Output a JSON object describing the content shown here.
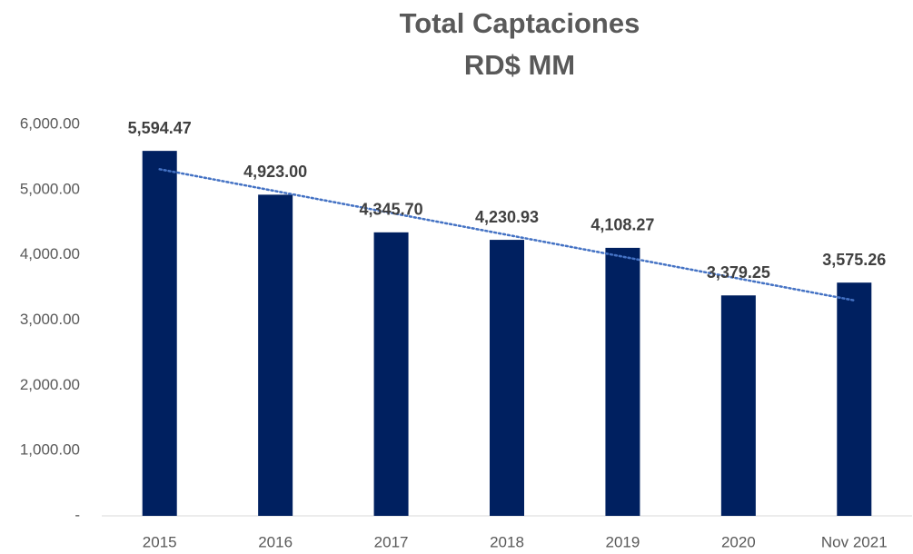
{
  "chart_data": {
    "type": "bar",
    "title": "Total Captaciones",
    "subtitle": "RD$ MM",
    "categories": [
      "2015",
      "2016",
      "2017",
      "2018",
      "2019",
      "2020",
      "Nov 2021"
    ],
    "values": [
      5594.47,
      4923.0,
      4345.7,
      4230.93,
      4108.27,
      3379.25,
      3575.26
    ],
    "value_labels": [
      "5,594.47",
      "4,923.00",
      "4,345.70",
      "4,230.93",
      "4,108.27",
      "3,379.25",
      "3,575.26"
    ],
    "color": "#002060",
    "ylim": [
      0,
      6000
    ],
    "yticks": [
      {
        "value": 0,
        "label": "-"
      },
      {
        "value": 1000,
        "label": "1,000.00"
      },
      {
        "value": 2000,
        "label": "2,000.00"
      },
      {
        "value": 3000,
        "label": "3,000.00"
      },
      {
        "value": 4000,
        "label": "4,000.00"
      },
      {
        "value": 5000,
        "label": "5,000.00"
      },
      {
        "value": 6000,
        "label": "6,000.00"
      }
    ],
    "grid": false,
    "trendline": {
      "type": "linear",
      "color": "#4472c4"
    }
  }
}
